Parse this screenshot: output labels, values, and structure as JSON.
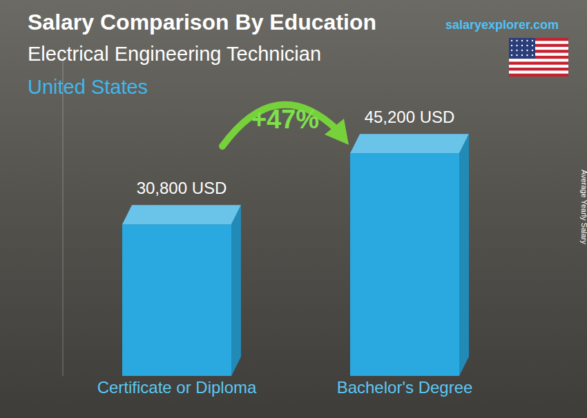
{
  "chart_data": {
    "type": "bar",
    "title": "Salary Comparison By Education",
    "subtitle": "Electrical Engineering Technician",
    "location": "United States",
    "source": "salaryexplorer.com",
    "annotation": "+47%",
    "ylabel": "Average Yearly Salary",
    "categories": [
      "Certificate or Diploma",
      "Bachelor's Degree"
    ],
    "values": [
      30800,
      45200
    ],
    "value_labels": [
      "30,800 USD",
      "45,200 USD"
    ],
    "data_labels": true,
    "color": "#2aa9e0",
    "ylim": [
      0,
      65000
    ],
    "yticks": [],
    "grid": false,
    "tick_labels": "x"
  }
}
